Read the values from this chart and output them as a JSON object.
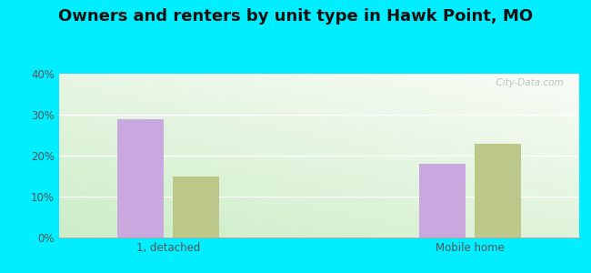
{
  "title": "Owners and renters by unit type in Hawk Point, MO",
  "categories": [
    "1, detached",
    "Mobile home"
  ],
  "owner_values": [
    29,
    18
  ],
  "renter_values": [
    15,
    23
  ],
  "owner_color": "#c9a8e0",
  "renter_color": "#bbc88a",
  "ylim": [
    0,
    0.4
  ],
  "yticks": [
    0.0,
    0.1,
    0.2,
    0.3,
    0.4
  ],
  "ytick_labels": [
    "0%",
    "10%",
    "20%",
    "30%",
    "40%"
  ],
  "background_outer": "#00eeff",
  "bar_width": 0.28,
  "group_positions": [
    1.0,
    2.8
  ],
  "title_fontsize": 13,
  "watermark": "  City-Data.com",
  "xlim": [
    0.35,
    3.45
  ]
}
